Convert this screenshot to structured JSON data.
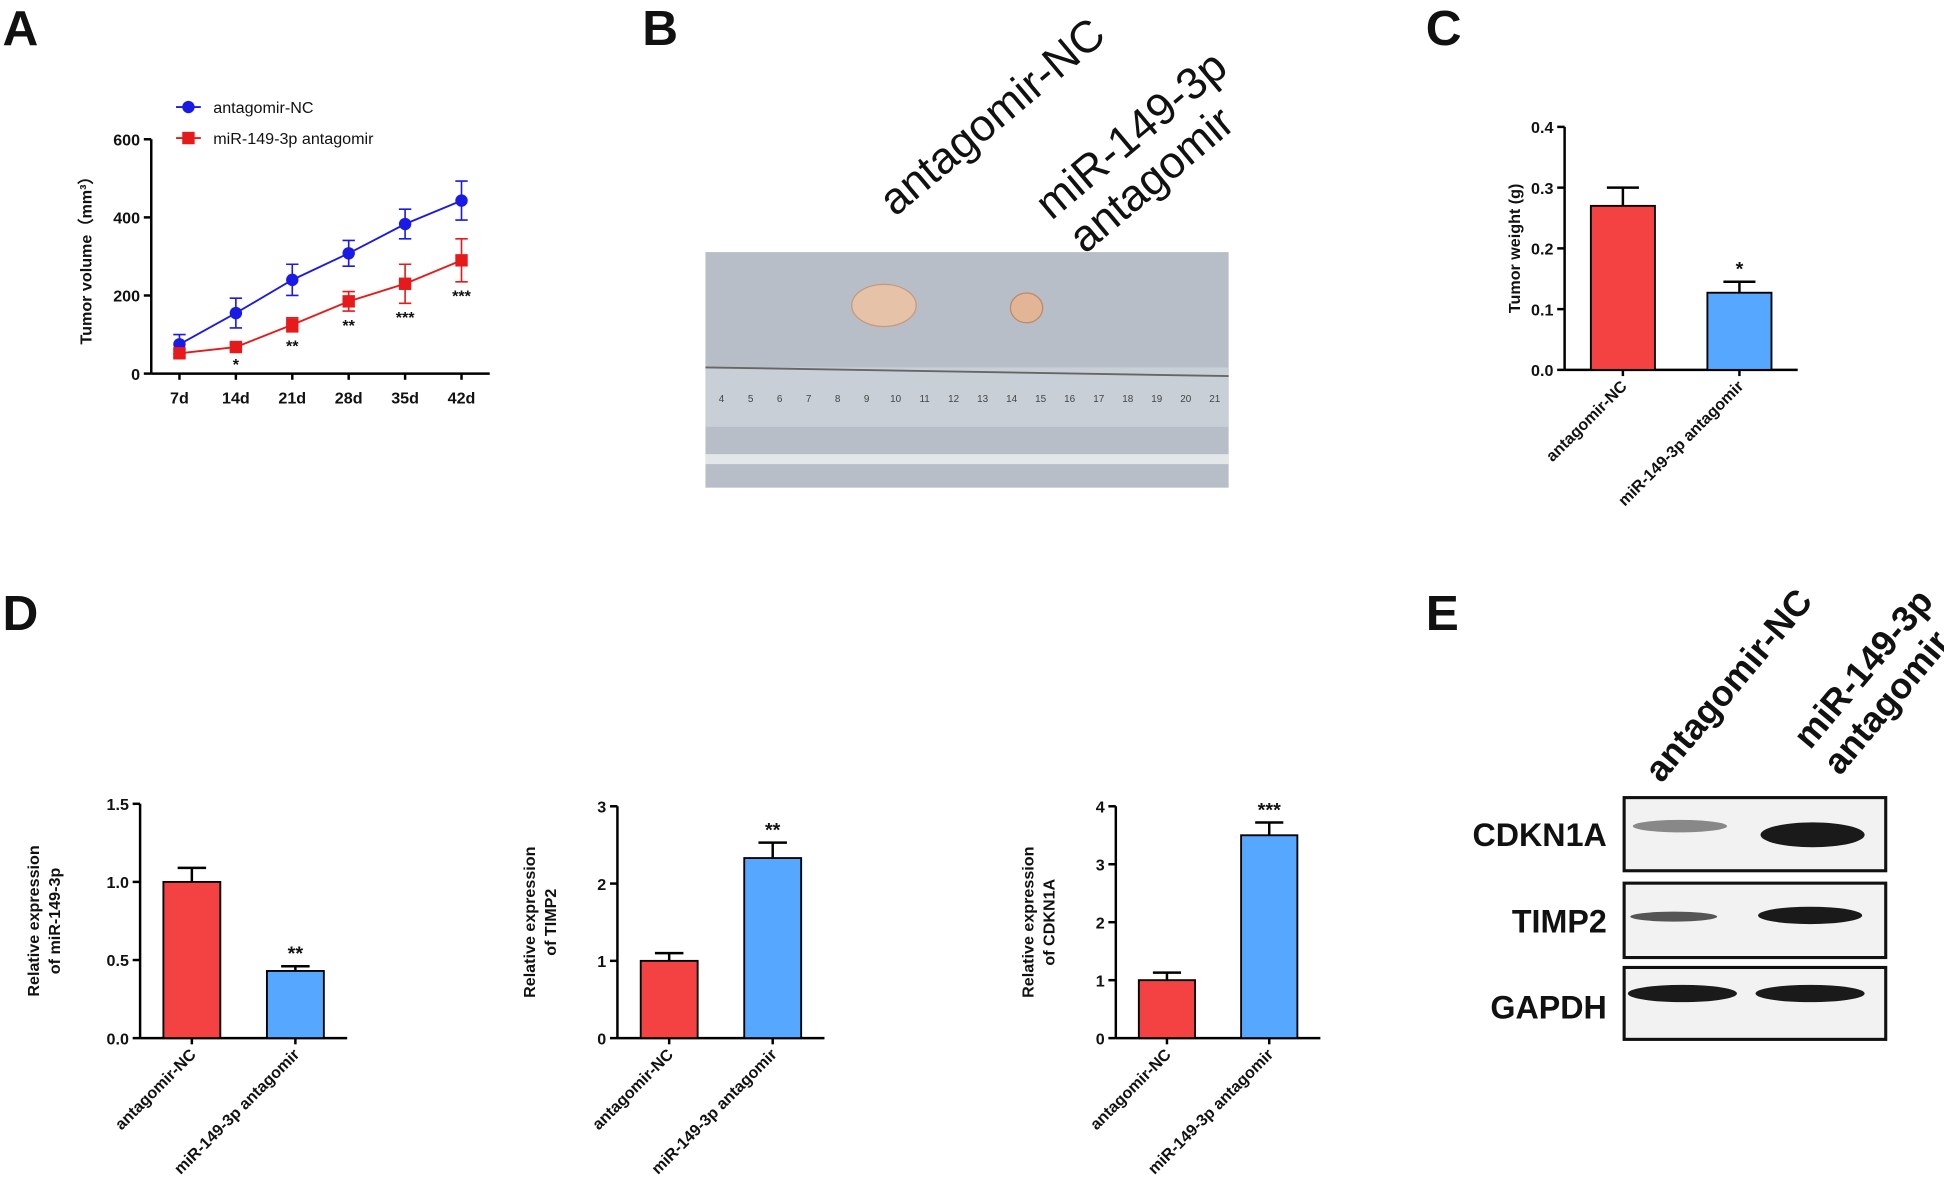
{
  "panel_labels": [
    "A",
    "B",
    "C",
    "D",
    "E"
  ],
  "photo": {
    "labels": [
      "antagomir-NC",
      "miR-149-3p",
      "antagomir"
    ],
    "ruler_labels": [
      4,
      5,
      6,
      7,
      8,
      9,
      10,
      11,
      12,
      13,
      14,
      15,
      16,
      17,
      18,
      19,
      20,
      21
    ]
  },
  "blot": {
    "columns": [
      "antagomir-NC",
      "miR-149-3p",
      "antagomir"
    ],
    "rows": [
      "CDKN1A",
      "TIMP2",
      "GAPDH"
    ]
  },
  "chart_data": [
    {
      "type": "line",
      "ylabel": [
        "Tumor volume（mm³）"
      ],
      "categories": [
        "7d",
        "14d",
        "21d",
        "28d",
        "35d",
        "42d"
      ],
      "ylim": [
        0,
        600
      ],
      "yticks": [
        0,
        200,
        400,
        600
      ],
      "series": [
        {
          "name": "antagomir-NC",
          "color": "#1a1ae6",
          "marker": "circle",
          "values": [
            75,
            155,
            240,
            308,
            383,
            443
          ],
          "errors": [
            25,
            38,
            40,
            33,
            38,
            50
          ]
        },
        {
          "name": "miR-149-3p antagomir",
          "color": "#e61a1a",
          "marker": "square",
          "values": [
            52,
            68,
            125,
            185,
            230,
            290
          ],
          "errors": [
            10,
            8,
            18,
            25,
            50,
            55
          ]
        }
      ],
      "significance": [
        null,
        "*",
        "**",
        "**",
        "***",
        "***"
      ]
    },
    {
      "type": "bar",
      "ylabel": [
        "Tumor weight (g)"
      ],
      "categories": [
        "antagomir-NC",
        "miR-149-3p antagomir"
      ],
      "colors": [
        "#f44141",
        "#55a7ff"
      ],
      "values": [
        0.27,
        0.127
      ],
      "errors": [
        0.03,
        0.018
      ],
      "ylim": [
        0,
        0.4
      ],
      "yticks": [
        {
          "value": 0,
          "label": "0.0"
        },
        0.1,
        0.2,
        0.3,
        0.4
      ],
      "significance": [
        null,
        "*"
      ]
    },
    {
      "type": "bar",
      "ylabel": [
        "Relative expression",
        "of miR-149-3p"
      ],
      "categories": [
        "antagomir-NC",
        "miR-149-3p antagomir"
      ],
      "colors": [
        "#f44141",
        "#55a7ff"
      ],
      "values": [
        1.0,
        0.43
      ],
      "errors": [
        0.09,
        0.03
      ],
      "ylim": [
        0,
        1.5
      ],
      "yticks": [
        {
          "value": 0,
          "label": "0.0"
        },
        0.5,
        {
          "value": 1,
          "label": "1.0"
        },
        1.5
      ],
      "significance": [
        null,
        "**"
      ]
    },
    {
      "type": "bar",
      "ylabel": [
        "Relative expression",
        "of TIMP2"
      ],
      "categories": [
        "antagomir-NC",
        "miR-149-3p antagomir"
      ],
      "colors": [
        "#f44141",
        "#55a7ff"
      ],
      "values": [
        1.0,
        2.33
      ],
      "errors": [
        0.1,
        0.2
      ],
      "ylim": [
        0,
        3
      ],
      "yticks": [
        0,
        1,
        2,
        3
      ],
      "significance": [
        null,
        "**"
      ]
    },
    {
      "type": "bar",
      "ylabel": [
        "Relative expression",
        "of CDKN1A"
      ],
      "categories": [
        "antagomir-NC",
        "miR-149-3p antagomir"
      ],
      "colors": [
        "#f44141",
        "#55a7ff"
      ],
      "values": [
        1.0,
        3.5
      ],
      "errors": [
        0.13,
        0.22
      ],
      "ylim": [
        0,
        4
      ],
      "yticks": [
        0,
        1,
        2,
        3,
        4
      ],
      "significance": [
        null,
        "***"
      ]
    }
  ]
}
